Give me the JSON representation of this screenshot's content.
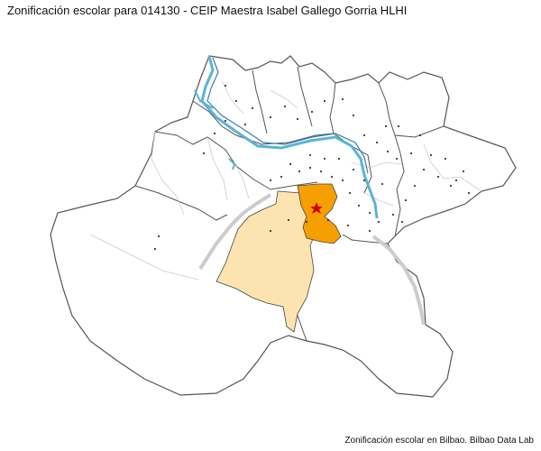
{
  "title": "Zonificación escolar para 014130 - CEIP Maestra Isabel Gallego Gorria HLHI",
  "caption": "Zonificación escolar en Bilbao. Bilbao Data Lab",
  "map": {
    "colors": {
      "background": "#ffffff",
      "district_fill": "#ffffff",
      "district_stroke": "#555555",
      "subdistrict_stroke": "#cccccc",
      "river": "#5ab4d6",
      "river_dark": "#3a7fa8",
      "railway": "#cccccc",
      "zone_primary": "#f5a000",
      "zone_secondary": "#fde3b0",
      "school_marker": "#cc0000",
      "dots": "#111111"
    },
    "school_marker_icon": "star-icon"
  }
}
